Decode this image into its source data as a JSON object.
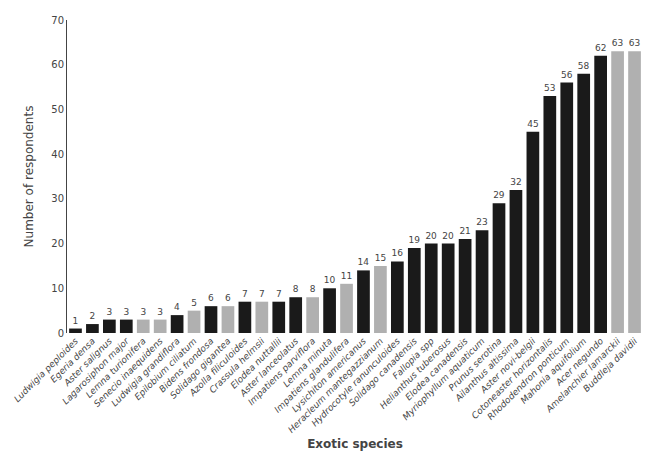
{
  "chart_data": {
    "type": "bar",
    "categories": [
      "Ludwigia peploides",
      "Egeria densa",
      "Aster salignus",
      "Lagarosiphon major",
      "Lemna turionifera",
      "Senecio inaequidens",
      "Ludwigia grandiflora",
      "Epilobium ciliatum",
      "Bidens frondosa",
      "Solidago gigantea",
      "Azolla filiculoides",
      "Crassula helmsii",
      "Elodea nuttallii",
      "Aster lanceolatus",
      "Impatiens parviflora",
      "Lemna minuta",
      "Impatiens glandulifera",
      "Lysichiton americanus",
      "Heracleum mantegazzianum",
      "Hydrocotyle ranunculoides",
      "Solidago canadensis",
      "Fallopia spp",
      "Helianthus tuberosus",
      "Elodea canadensis",
      "Myriophyllum aquaticum",
      "Prunus serotina",
      "Ailanthus altissima",
      "Aster novi-belgii",
      "Cotoneaster horizontalis",
      "Rhododendron ponticum",
      "Mahonia aquifolium",
      "Acer negundo",
      "Amelanchier lamarckii",
      "Buddleja davidii"
    ],
    "values": [
      1,
      2,
      3,
      3,
      3,
      3,
      4,
      5,
      6,
      6,
      7,
      7,
      7,
      8,
      8,
      10,
      11,
      14,
      15,
      16,
      19,
      20,
      20,
      21,
      23,
      29,
      32,
      45,
      53,
      56,
      58,
      62,
      63,
      63
    ],
    "colors": [
      "#1a1a1a",
      "#1a1a1a",
      "#1a1a1a",
      "#1a1a1a",
      "#b0b0b0",
      "#b0b0b0",
      "#1a1a1a",
      "#b0b0b0",
      "#1a1a1a",
      "#b0b0b0",
      "#1a1a1a",
      "#b0b0b0",
      "#1a1a1a",
      "#1a1a1a",
      "#b0b0b0",
      "#1a1a1a",
      "#b0b0b0",
      "#1a1a1a",
      "#b0b0b0",
      "#1a1a1a",
      "#1a1a1a",
      "#1a1a1a",
      "#1a1a1a",
      "#1a1a1a",
      "#1a1a1a",
      "#1a1a1a",
      "#1a1a1a",
      "#1a1a1a",
      "#1a1a1a",
      "#1a1a1a",
      "#1a1a1a",
      "#1a1a1a",
      "#b0b0b0",
      "#b0b0b0"
    ],
    "xlabel": "Exotic species",
    "ylabel": "Number of respondents",
    "ylim": [
      0,
      70
    ],
    "yticks": [
      0,
      10,
      20,
      30,
      40,
      50,
      60,
      70
    ],
    "data_labels": true,
    "grid": false
  }
}
